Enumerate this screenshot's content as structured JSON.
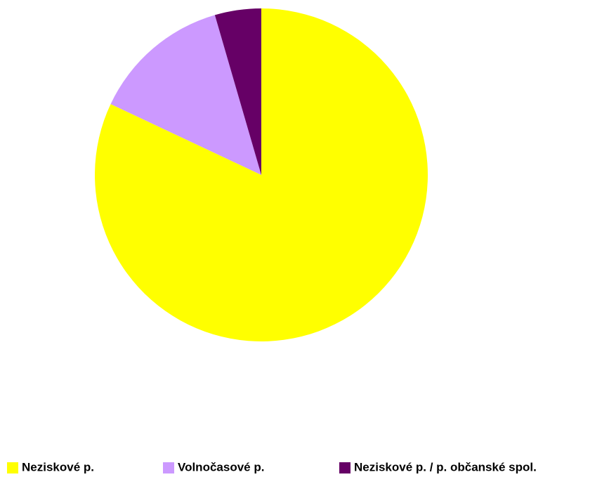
{
  "chart_data": {
    "type": "pie",
    "categories": [
      "Neziskové p.",
      "Volnočasové p.",
      "Neziskové p. / p. občanské spol."
    ],
    "values": [
      82,
      13.5,
      4.5
    ],
    "colors": [
      "#ffff00",
      "#cc99ff",
      "#660066"
    ],
    "legend": "bottom"
  }
}
